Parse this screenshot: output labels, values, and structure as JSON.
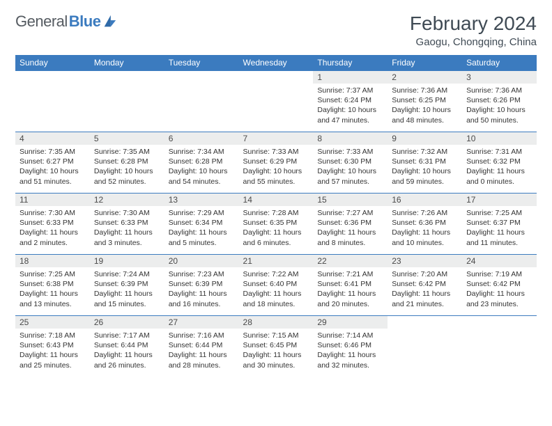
{
  "logo": {
    "part1": "General",
    "part2": "Blue"
  },
  "title": "February 2024",
  "location": "Gaogu, Chongqing, China",
  "colors": {
    "header_bg": "#3b7bbf",
    "header_text": "#ffffff",
    "daynum_bg": "#eceded",
    "border": "#3b7bbf",
    "logo_gray": "#555b61",
    "logo_blue": "#3b7bbf"
  },
  "weekdays": [
    "Sunday",
    "Monday",
    "Tuesday",
    "Wednesday",
    "Thursday",
    "Friday",
    "Saturday"
  ],
  "weeks": [
    [
      null,
      null,
      null,
      null,
      {
        "n": "1",
        "sr": "7:37 AM",
        "ss": "6:24 PM",
        "dl": "10 hours and 47 minutes."
      },
      {
        "n": "2",
        "sr": "7:36 AM",
        "ss": "6:25 PM",
        "dl": "10 hours and 48 minutes."
      },
      {
        "n": "3",
        "sr": "7:36 AM",
        "ss": "6:26 PM",
        "dl": "10 hours and 50 minutes."
      }
    ],
    [
      {
        "n": "4",
        "sr": "7:35 AM",
        "ss": "6:27 PM",
        "dl": "10 hours and 51 minutes."
      },
      {
        "n": "5",
        "sr": "7:35 AM",
        "ss": "6:28 PM",
        "dl": "10 hours and 52 minutes."
      },
      {
        "n": "6",
        "sr": "7:34 AM",
        "ss": "6:28 PM",
        "dl": "10 hours and 54 minutes."
      },
      {
        "n": "7",
        "sr": "7:33 AM",
        "ss": "6:29 PM",
        "dl": "10 hours and 55 minutes."
      },
      {
        "n": "8",
        "sr": "7:33 AM",
        "ss": "6:30 PM",
        "dl": "10 hours and 57 minutes."
      },
      {
        "n": "9",
        "sr": "7:32 AM",
        "ss": "6:31 PM",
        "dl": "10 hours and 59 minutes."
      },
      {
        "n": "10",
        "sr": "7:31 AM",
        "ss": "6:32 PM",
        "dl": "11 hours and 0 minutes."
      }
    ],
    [
      {
        "n": "11",
        "sr": "7:30 AM",
        "ss": "6:33 PM",
        "dl": "11 hours and 2 minutes."
      },
      {
        "n": "12",
        "sr": "7:30 AM",
        "ss": "6:33 PM",
        "dl": "11 hours and 3 minutes."
      },
      {
        "n": "13",
        "sr": "7:29 AM",
        "ss": "6:34 PM",
        "dl": "11 hours and 5 minutes."
      },
      {
        "n": "14",
        "sr": "7:28 AM",
        "ss": "6:35 PM",
        "dl": "11 hours and 6 minutes."
      },
      {
        "n": "15",
        "sr": "7:27 AM",
        "ss": "6:36 PM",
        "dl": "11 hours and 8 minutes."
      },
      {
        "n": "16",
        "sr": "7:26 AM",
        "ss": "6:36 PM",
        "dl": "11 hours and 10 minutes."
      },
      {
        "n": "17",
        "sr": "7:25 AM",
        "ss": "6:37 PM",
        "dl": "11 hours and 11 minutes."
      }
    ],
    [
      {
        "n": "18",
        "sr": "7:25 AM",
        "ss": "6:38 PM",
        "dl": "11 hours and 13 minutes."
      },
      {
        "n": "19",
        "sr": "7:24 AM",
        "ss": "6:39 PM",
        "dl": "11 hours and 15 minutes."
      },
      {
        "n": "20",
        "sr": "7:23 AM",
        "ss": "6:39 PM",
        "dl": "11 hours and 16 minutes."
      },
      {
        "n": "21",
        "sr": "7:22 AM",
        "ss": "6:40 PM",
        "dl": "11 hours and 18 minutes."
      },
      {
        "n": "22",
        "sr": "7:21 AM",
        "ss": "6:41 PM",
        "dl": "11 hours and 20 minutes."
      },
      {
        "n": "23",
        "sr": "7:20 AM",
        "ss": "6:42 PM",
        "dl": "11 hours and 21 minutes."
      },
      {
        "n": "24",
        "sr": "7:19 AM",
        "ss": "6:42 PM",
        "dl": "11 hours and 23 minutes."
      }
    ],
    [
      {
        "n": "25",
        "sr": "7:18 AM",
        "ss": "6:43 PM",
        "dl": "11 hours and 25 minutes."
      },
      {
        "n": "26",
        "sr": "7:17 AM",
        "ss": "6:44 PM",
        "dl": "11 hours and 26 minutes."
      },
      {
        "n": "27",
        "sr": "7:16 AM",
        "ss": "6:44 PM",
        "dl": "11 hours and 28 minutes."
      },
      {
        "n": "28",
        "sr": "7:15 AM",
        "ss": "6:45 PM",
        "dl": "11 hours and 30 minutes."
      },
      {
        "n": "29",
        "sr": "7:14 AM",
        "ss": "6:46 PM",
        "dl": "11 hours and 32 minutes."
      },
      null,
      null
    ]
  ],
  "labels": {
    "sunrise": "Sunrise: ",
    "sunset": "Sunset: ",
    "daylight": "Daylight: "
  }
}
